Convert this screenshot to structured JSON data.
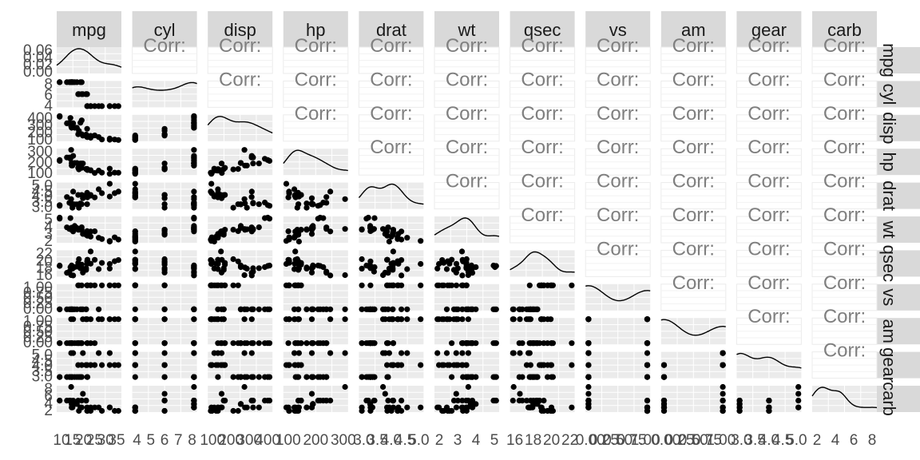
{
  "chart_data": {
    "type": "scatter",
    "title": "",
    "layout": "pairs-matrix",
    "panel_bg": "#ebebeb",
    "strip_bg": "#d9d9d9",
    "point_color": "#000000",
    "line_color": "#000000",
    "corr_text_color": "#7f7f7f",
    "upper_panel_text": "Corr:",
    "variables": [
      "mpg",
      "cyl",
      "disp",
      "hp",
      "drat",
      "wt",
      "qsec",
      "vs",
      "am",
      "gear",
      "carb"
    ],
    "row_labels": [
      "mpg",
      "cyl",
      "disp",
      "hp",
      "drat",
      "wt",
      "qsec",
      "vs",
      "am",
      "gear",
      "carb"
    ],
    "x_ticks": [
      {
        "var": "mpg",
        "labels": [
          "10",
          "15",
          "20",
          "25",
          "30",
          "35"
        ]
      },
      {
        "var": "cyl",
        "labels": [
          "4",
          "5",
          "6",
          "7",
          "8"
        ]
      },
      {
        "var": "disp",
        "labels": [
          "100",
          "200",
          "300",
          "400"
        ]
      },
      {
        "var": "hp",
        "labels": [
          "100",
          "200",
          "300"
        ]
      },
      {
        "var": "drat",
        "labels": [
          "3.0",
          "3.5",
          "4.0",
          "4.5",
          "5.0"
        ]
      },
      {
        "var": "wt",
        "labels": [
          "2",
          "3",
          "4",
          "5"
        ]
      },
      {
        "var": "qsec",
        "labels": [
          "16",
          "18",
          "20",
          "22"
        ]
      },
      {
        "var": "vs",
        "labels": [
          "0.00",
          "0.25",
          "0.50",
          "0.75",
          "1.00"
        ]
      },
      {
        "var": "am",
        "labels": [
          "0.00",
          "0.25",
          "0.50",
          "0.75",
          "1.00"
        ]
      },
      {
        "var": "gear",
        "labels": [
          "3.0",
          "3.5",
          "4.0",
          "4.5",
          "5.0"
        ]
      },
      {
        "var": "carb",
        "labels": [
          "2",
          "4",
          "6",
          "8"
        ]
      }
    ],
    "y_ticks": [
      {
        "var": "mpg",
        "labels": [
          "0.00",
          "0.02",
          "0.04",
          "0.06"
        ]
      },
      {
        "var": "cyl",
        "labels": [
          "4",
          "6",
          "8"
        ]
      },
      {
        "var": "disp",
        "labels": [
          "100",
          "200",
          "300",
          "400"
        ]
      },
      {
        "var": "hp",
        "labels": [
          "100",
          "200",
          "300"
        ]
      },
      {
        "var": "drat",
        "labels": [
          "3.0",
          "3.5",
          "4.0",
          "4.5",
          "5.0"
        ]
      },
      {
        "var": "wt",
        "labels": [
          "2",
          "3",
          "4",
          "5"
        ]
      },
      {
        "var": "qsec",
        "labels": [
          "16",
          "18",
          "20",
          "22"
        ]
      },
      {
        "var": "vs",
        "labels": [
          "0.00",
          "0.25",
          "0.50",
          "0.75",
          "1.00"
        ]
      },
      {
        "var": "am",
        "labels": [
          "0.00",
          "0.25",
          "0.50",
          "0.75",
          "1.00"
        ]
      },
      {
        "var": "gear",
        "labels": [
          "3.0",
          "3.5",
          "4.0",
          "4.5",
          "5.0"
        ]
      },
      {
        "var": "carb",
        "labels": [
          "2",
          "4",
          "6",
          "8"
        ]
      }
    ],
    "observations": [
      [
        21.0,
        6,
        160.0,
        110,
        3.9,
        2.62,
        16.46,
        0,
        1,
        4,
        4
      ],
      [
        21.0,
        6,
        160.0,
        110,
        3.9,
        2.875,
        17.02,
        0,
        1,
        4,
        4
      ],
      [
        22.8,
        4,
        108.0,
        93,
        3.85,
        2.32,
        18.61,
        1,
        1,
        4,
        1
      ],
      [
        21.4,
        6,
        258.0,
        110,
        3.08,
        3.215,
        19.44,
        1,
        0,
        3,
        1
      ],
      [
        18.7,
        8,
        360.0,
        175,
        3.15,
        3.44,
        17.02,
        0,
        0,
        3,
        2
      ],
      [
        18.1,
        6,
        225.0,
        105,
        2.76,
        3.46,
        20.22,
        1,
        0,
        3,
        1
      ],
      [
        14.3,
        8,
        360.0,
        245,
        3.21,
        3.57,
        15.84,
        0,
        0,
        3,
        4
      ],
      [
        24.4,
        4,
        146.7,
        62,
        3.69,
        3.19,
        20.0,
        1,
        0,
        4,
        2
      ],
      [
        22.8,
        4,
        140.8,
        95,
        3.92,
        3.15,
        22.9,
        1,
        0,
        4,
        2
      ],
      [
        19.2,
        6,
        167.6,
        123,
        3.92,
        3.44,
        18.3,
        1,
        0,
        4,
        4
      ],
      [
        17.8,
        6,
        167.6,
        123,
        3.92,
        3.44,
        18.9,
        1,
        0,
        4,
        4
      ],
      [
        16.4,
        8,
        275.8,
        180,
        3.07,
        4.07,
        17.4,
        0,
        0,
        3,
        3
      ],
      [
        17.3,
        8,
        275.8,
        180,
        3.07,
        3.73,
        17.6,
        0,
        0,
        3,
        3
      ],
      [
        15.2,
        8,
        275.8,
        180,
        3.07,
        3.78,
        18.0,
        0,
        0,
        3,
        3
      ],
      [
        10.4,
        8,
        472.0,
        205,
        2.93,
        5.25,
        17.98,
        0,
        0,
        3,
        4
      ],
      [
        10.4,
        8,
        460.0,
        215,
        3.0,
        5.424,
        17.82,
        0,
        0,
        3,
        4
      ],
      [
        14.7,
        8,
        440.0,
        230,
        3.23,
        5.345,
        17.42,
        0,
        0,
        3,
        4
      ],
      [
        32.4,
        4,
        78.7,
        66,
        4.08,
        2.2,
        19.47,
        1,
        1,
        4,
        1
      ],
      [
        30.4,
        4,
        75.7,
        52,
        4.93,
        1.615,
        18.52,
        1,
        1,
        4,
        2
      ],
      [
        33.9,
        4,
        71.1,
        65,
        4.22,
        1.835,
        19.9,
        1,
        1,
        4,
        1
      ],
      [
        21.5,
        4,
        120.1,
        97,
        3.7,
        2.465,
        20.01,
        1,
        0,
        3,
        1
      ],
      [
        15.5,
        8,
        318.0,
        150,
        2.76,
        3.52,
        16.87,
        0,
        0,
        3,
        2
      ],
      [
        15.2,
        8,
        304.0,
        150,
        3.15,
        3.435,
        17.3,
        0,
        0,
        3,
        2
      ],
      [
        13.3,
        8,
        350.0,
        245,
        3.73,
        3.84,
        15.41,
        0,
        0,
        3,
        4
      ],
      [
        19.2,
        8,
        400.0,
        175,
        3.08,
        3.845,
        17.05,
        0,
        0,
        3,
        2
      ],
      [
        27.3,
        4,
        79.0,
        66,
        4.08,
        1.935,
        18.9,
        1,
        1,
        4,
        1
      ],
      [
        26.0,
        4,
        120.3,
        91,
        4.43,
        2.14,
        16.7,
        0,
        1,
        5,
        2
      ],
      [
        30.4,
        4,
        95.1,
        113,
        3.77,
        1.513,
        16.9,
        1,
        1,
        5,
        2
      ],
      [
        15.8,
        8,
        351.0,
        264,
        4.22,
        3.17,
        14.5,
        0,
        1,
        5,
        4
      ],
      [
        19.7,
        6,
        145.0,
        175,
        3.62,
        2.77,
        15.5,
        0,
        1,
        5,
        6
      ],
      [
        15.0,
        8,
        301.0,
        335,
        3.54,
        3.57,
        14.6,
        0,
        1,
        5,
        8
      ],
      [
        21.4,
        4,
        121.0,
        109,
        4.11,
        2.78,
        18.6,
        1,
        1,
        4,
        2
      ]
    ]
  }
}
